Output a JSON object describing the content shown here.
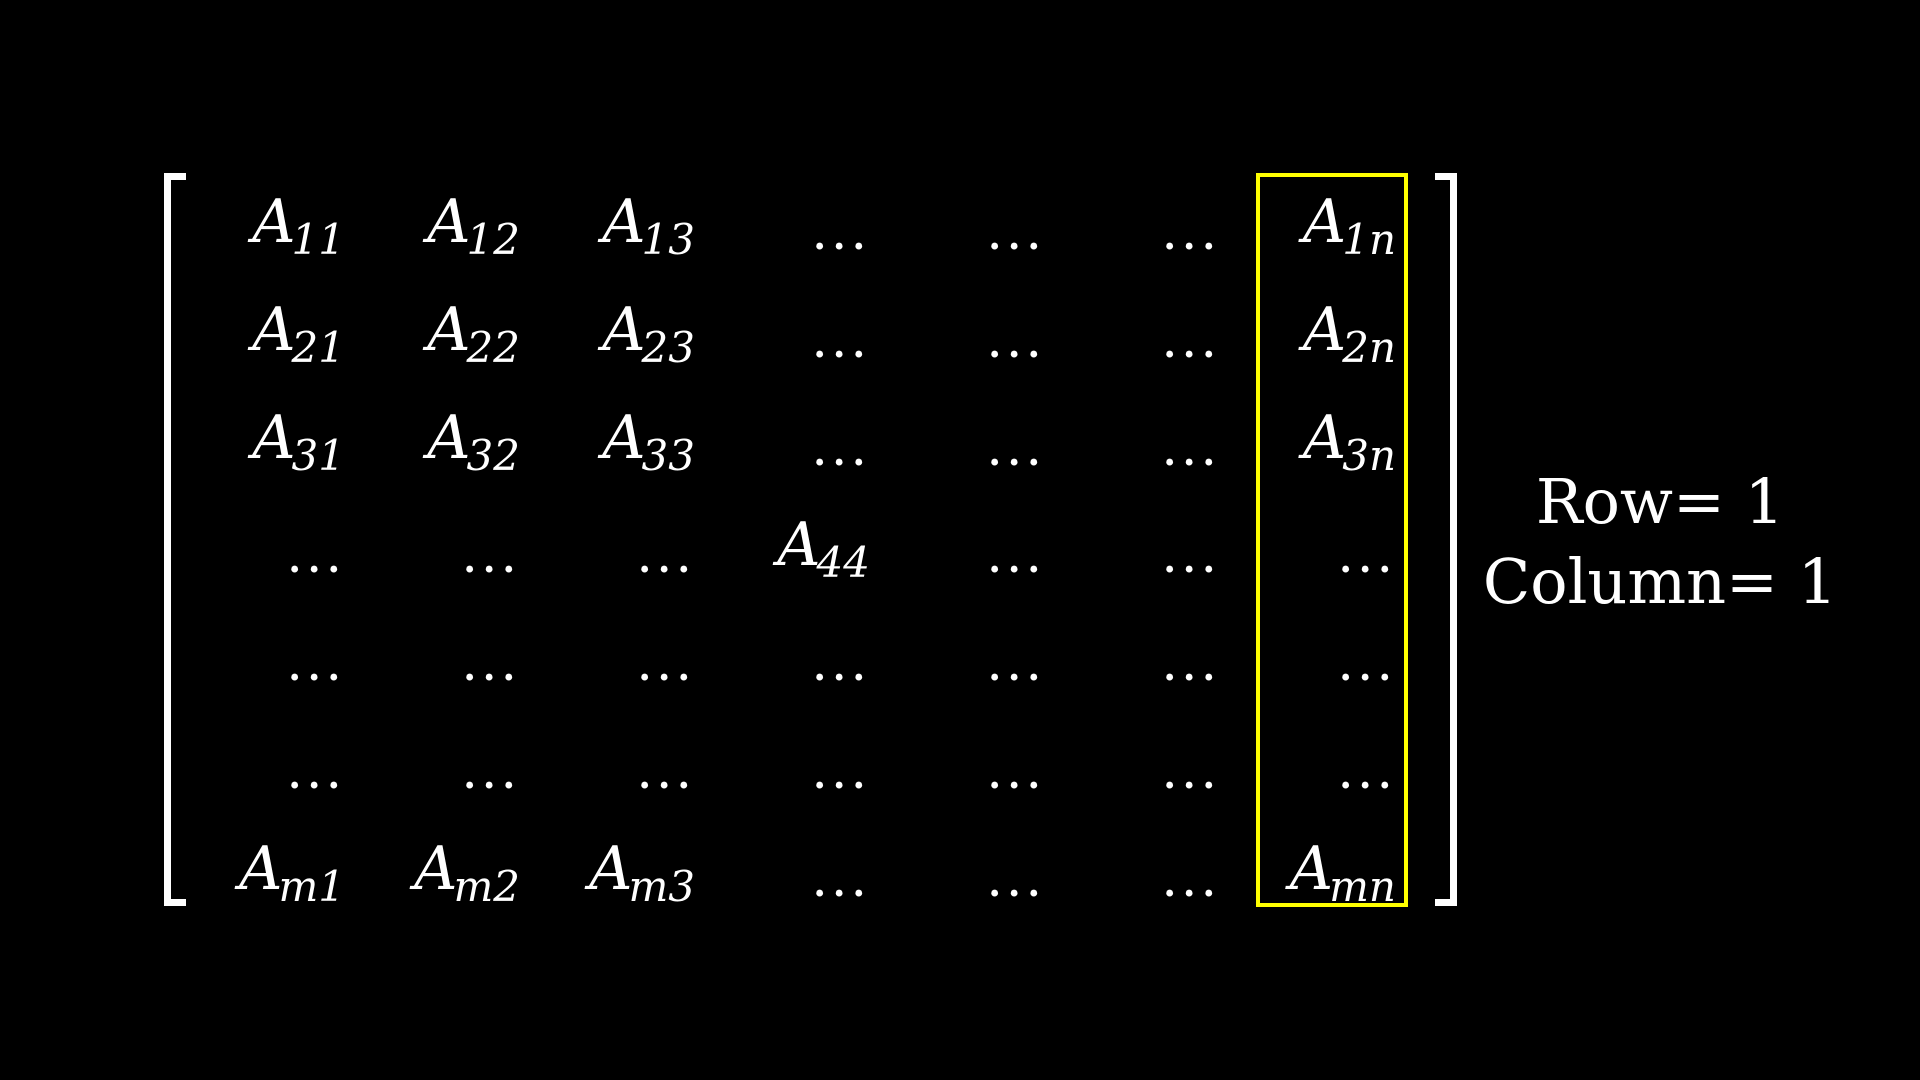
{
  "matrix": {
    "rows": [
      [
        {
          "kind": "entry",
          "base": "A",
          "sub": "11"
        },
        {
          "kind": "entry",
          "base": "A",
          "sub": "12"
        },
        {
          "kind": "entry",
          "base": "A",
          "sub": "13"
        },
        {
          "kind": "dots",
          "text": "..."
        },
        {
          "kind": "dots",
          "text": "..."
        },
        {
          "kind": "dots",
          "text": "..."
        },
        {
          "kind": "entry",
          "base": "A",
          "sub": "1n"
        }
      ],
      [
        {
          "kind": "entry",
          "base": "A",
          "sub": "21"
        },
        {
          "kind": "entry",
          "base": "A",
          "sub": "22"
        },
        {
          "kind": "entry",
          "base": "A",
          "sub": "23"
        },
        {
          "kind": "dots",
          "text": "..."
        },
        {
          "kind": "dots",
          "text": "..."
        },
        {
          "kind": "dots",
          "text": "..."
        },
        {
          "kind": "entry",
          "base": "A",
          "sub": "2n"
        }
      ],
      [
        {
          "kind": "entry",
          "base": "A",
          "sub": "31"
        },
        {
          "kind": "entry",
          "base": "A",
          "sub": "32"
        },
        {
          "kind": "entry",
          "base": "A",
          "sub": "33"
        },
        {
          "kind": "dots",
          "text": "..."
        },
        {
          "kind": "dots",
          "text": "..."
        },
        {
          "kind": "dots",
          "text": "..."
        },
        {
          "kind": "entry",
          "base": "A",
          "sub": "3n"
        }
      ],
      [
        {
          "kind": "dots",
          "text": "..."
        },
        {
          "kind": "dots",
          "text": "..."
        },
        {
          "kind": "dots",
          "text": "..."
        },
        {
          "kind": "entry",
          "base": "A",
          "sub": "44"
        },
        {
          "kind": "dots",
          "text": "..."
        },
        {
          "kind": "dots",
          "text": "..."
        },
        {
          "kind": "dots",
          "text": "..."
        }
      ],
      [
        {
          "kind": "dots",
          "text": "..."
        },
        {
          "kind": "dots",
          "text": "..."
        },
        {
          "kind": "dots",
          "text": "..."
        },
        {
          "kind": "dots",
          "text": "..."
        },
        {
          "kind": "dots",
          "text": "..."
        },
        {
          "kind": "dots",
          "text": "..."
        },
        {
          "kind": "dots",
          "text": "..."
        }
      ],
      [
        {
          "kind": "dots",
          "text": "..."
        },
        {
          "kind": "dots",
          "text": "..."
        },
        {
          "kind": "dots",
          "text": "..."
        },
        {
          "kind": "dots",
          "text": "..."
        },
        {
          "kind": "dots",
          "text": "..."
        },
        {
          "kind": "dots",
          "text": "..."
        },
        {
          "kind": "dots",
          "text": "..."
        }
      ],
      [
        {
          "kind": "entry",
          "base": "A",
          "sub": "m1"
        },
        {
          "kind": "entry",
          "base": "A",
          "sub": "m2"
        },
        {
          "kind": "entry",
          "base": "A",
          "sub": "m3"
        },
        {
          "kind": "dots",
          "text": "..."
        },
        {
          "kind": "dots",
          "text": "..."
        },
        {
          "kind": "dots",
          "text": "..."
        },
        {
          "kind": "entry",
          "base": "A",
          "sub": "mn"
        }
      ]
    ],
    "highlighted_column": 7,
    "highlight_color": "#ffff00",
    "bracket_color": "#ffffff",
    "text_color": "#ffffff",
    "background_color": "#000000"
  },
  "labels": {
    "row": "Row= 1",
    "column": "Column= 1"
  }
}
